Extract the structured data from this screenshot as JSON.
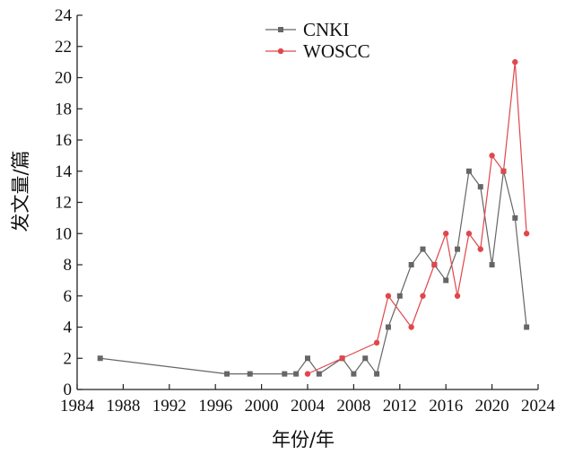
{
  "chart_data": {
    "type": "line",
    "xlabel": "年份/年",
    "ylabel": "发文量/篇",
    "xlim": [
      1984,
      2024
    ],
    "ylim": [
      0,
      24
    ],
    "xticks": [
      1984,
      1988,
      1992,
      1996,
      2000,
      2004,
      2008,
      2012,
      2016,
      2020,
      2024
    ],
    "yticks": [
      0,
      2,
      4,
      6,
      8,
      10,
      12,
      14,
      16,
      18,
      20,
      22,
      24
    ],
    "grid": false,
    "legend_position": "top-center",
    "series": [
      {
        "name": "CNKI",
        "color": "#666666",
        "marker": "square",
        "x": [
          1986,
          1997,
          1999,
          2002,
          2003,
          2004,
          2005,
          2007,
          2008,
          2009,
          2010,
          2011,
          2012,
          2013,
          2014,
          2015,
          2016,
          2017,
          2018,
          2019,
          2020,
          2021,
          2022,
          2023
        ],
        "y": [
          2,
          1,
          1,
          1,
          1,
          2,
          1,
          2,
          1,
          2,
          1,
          4,
          6,
          8,
          9,
          8,
          7,
          9,
          14,
          13,
          8,
          14,
          11,
          4
        ]
      },
      {
        "name": "WOSCC",
        "color": "#e0474c",
        "marker": "circle",
        "x": [
          2004,
          2007,
          2010,
          2011,
          2013,
          2014,
          2015,
          2016,
          2017,
          2018,
          2019,
          2020,
          2021,
          2022,
          2023
        ],
        "y": [
          1,
          2,
          3,
          6,
          4,
          6,
          8,
          10,
          6,
          10,
          9,
          15,
          14,
          21,
          10
        ]
      }
    ]
  }
}
